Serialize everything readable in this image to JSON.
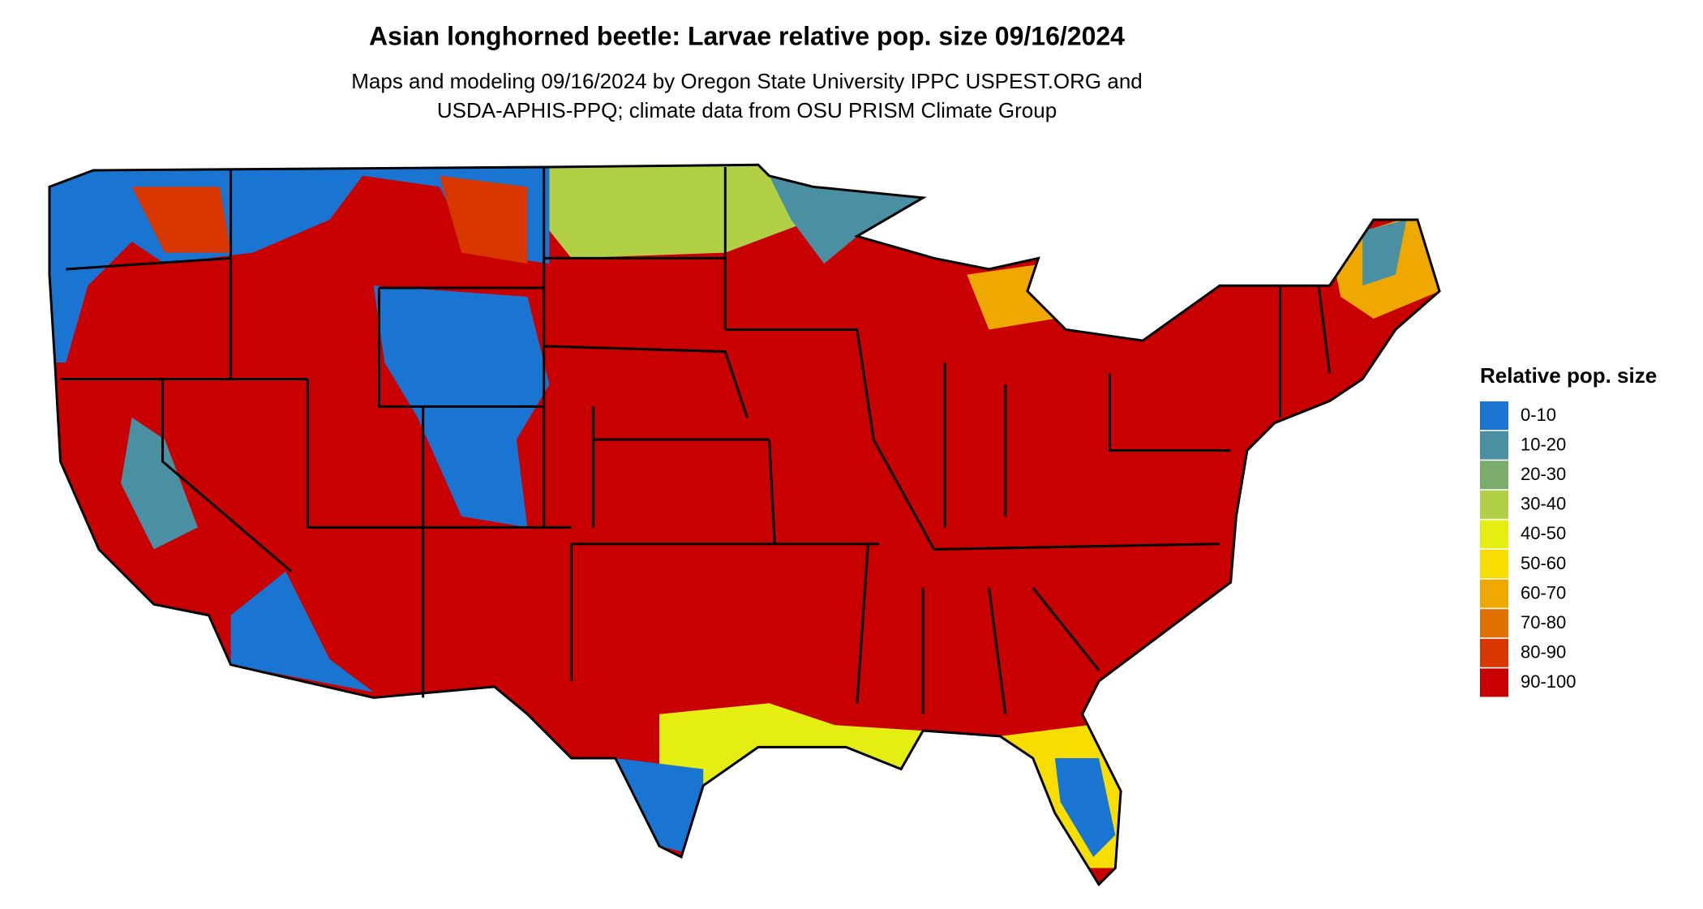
{
  "header": {
    "title": "Asian longhorned beetle: Larvae relative pop. size 09/16/2024",
    "subtitle": [
      "Maps and modeling 09/16/2024 by Oregon State University IPPC USPEST.ORG and",
      "USDA-APHIS-PPQ; climate data from OSU PRISM Climate Group"
    ]
  },
  "legend": {
    "title": "Relative pop. size",
    "items": [
      {
        "label": "0-10",
        "color": "#1a74d2"
      },
      {
        "label": "10-20",
        "color": "#4a8fa2"
      },
      {
        "label": "20-30",
        "color": "#7aac6c"
      },
      {
        "label": "30-40",
        "color": "#b2d045"
      },
      {
        "label": "40-50",
        "color": "#e4ee12"
      },
      {
        "label": "50-60",
        "color": "#f7de00"
      },
      {
        "label": "60-70",
        "color": "#eea800"
      },
      {
        "label": "70-80",
        "color": "#e07000"
      },
      {
        "label": "80-90",
        "color": "#d83800"
      },
      {
        "label": "90-100",
        "color": "#c80000"
      }
    ]
  }
}
